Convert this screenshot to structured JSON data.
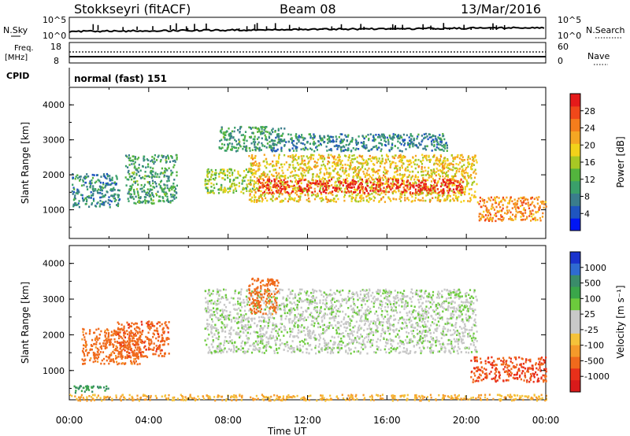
{
  "header": {
    "station": "Stokkseyri (fitACF)",
    "beam": "Beam 08",
    "date": "13/Mar/2016"
  },
  "strips": {
    "nsky_label": "N.Sky",
    "nsky_ticks": [
      "10^5",
      "10^0"
    ],
    "nsearch_label": "N.Search",
    "nsearch_ticks": [
      "10^5",
      "10^0"
    ],
    "freq_label": "Freq.",
    "freq_unit": "[MHz]",
    "freq_ticks": [
      "18",
      "8"
    ],
    "nave_label": "Nave",
    "nave_ticks": [
      "60",
      "0"
    ],
    "cpid_label": "CPID",
    "cpid_value": "normal (fast) 151"
  },
  "chart_data": [
    {
      "type": "heatmap",
      "panel": "power",
      "ylabel": "Slant Range [km]",
      "xlabel": "Time UT",
      "ylim": [
        180,
        4500
      ],
      "xlim": [
        0,
        24
      ],
      "yticks": [
        "1000",
        "2000",
        "3000",
        "4000"
      ],
      "xticks": [
        "00:00",
        "04:00",
        "08:00",
        "12:00",
        "16:00",
        "20:00",
        "00:00"
      ],
      "colorbar": {
        "label": "Power [dB]",
        "ticks": [
          "4",
          "8",
          "12",
          "16",
          "20",
          "24",
          "28"
        ],
        "colors": [
          "#0016f5",
          "#1f55c0",
          "#3a7d8c",
          "#3aa06a",
          "#53b43d",
          "#a7c824",
          "#f2d21a",
          "#f5a623",
          "#f47d1c",
          "#f0481a",
          "#e51a1a"
        ]
      },
      "echo_regions": [
        {
          "t0": 0.1,
          "t1": 2.5,
          "r0": 1100,
          "r1": 2050,
          "power_db": 8
        },
        {
          "t0": 2.8,
          "t1": 5.4,
          "r0": 1200,
          "r1": 2600,
          "power_db": 10
        },
        {
          "t0": 6.8,
          "t1": 9.2,
          "r0": 1500,
          "r1": 2200,
          "power_db": 14
        },
        {
          "t0": 7.5,
          "t1": 10.8,
          "r0": 2700,
          "r1": 3400,
          "power_db": 10
        },
        {
          "t0": 9.0,
          "t1": 20.5,
          "r0": 1250,
          "r1": 2600,
          "power_db": 18
        },
        {
          "t0": 9.5,
          "t1": 19.8,
          "r0": 1500,
          "r1": 1900,
          "power_db": 28
        },
        {
          "t0": 10.0,
          "t1": 19.0,
          "r0": 2700,
          "r1": 3200,
          "power_db": 8
        },
        {
          "t0": 20.5,
          "t1": 24.0,
          "r0": 700,
          "r1": 1400,
          "power_db": 22
        }
      ]
    },
    {
      "type": "heatmap",
      "panel": "velocity",
      "ylabel": "Slant Range [km]",
      "xlabel": "Time UT",
      "ylim": [
        180,
        4500
      ],
      "xlim": [
        0,
        24
      ],
      "yticks": [
        "1000",
        "2000",
        "3000",
        "4000"
      ],
      "xticks": [
        "00:00",
        "04:00",
        "08:00",
        "12:00",
        "16:00",
        "20:00",
        "00:00"
      ],
      "colorbar": {
        "label": "Velocity [m s⁻¹]",
        "ticks": [
          "1000",
          "500",
          "100",
          "25",
          "-25",
          "-100",
          "-500",
          "-1000"
        ],
        "colors": [
          "#1a33cc",
          "#2f6bd1",
          "#3a8c6a",
          "#3aa64a",
          "#6ccb3c",
          "#c8c8c8",
          "#c8c8c8",
          "#f5c23a",
          "#f59a2a",
          "#f06a1c",
          "#e8301a",
          "#d91a1a"
        ]
      },
      "echo_regions": [
        {
          "t0": 0.2,
          "t1": 2.0,
          "r0": 400,
          "r1": 600,
          "velocity_ms": 200
        },
        {
          "t0": 0.6,
          "t1": 3.6,
          "r0": 1200,
          "r1": 2200,
          "velocity_ms": -300
        },
        {
          "t0": 2.4,
          "t1": 5.0,
          "r0": 1400,
          "r1": 2400,
          "velocity_ms": -400
        },
        {
          "t0": 6.8,
          "t1": 20.5,
          "r0": 1500,
          "r1": 3300,
          "velocity_ms": 0
        },
        {
          "t0": 9.0,
          "t1": 10.5,
          "r0": 2600,
          "r1": 3600,
          "velocity_ms": -300
        },
        {
          "t0": 20.2,
          "t1": 24.0,
          "r0": 700,
          "r1": 1400,
          "velocity_ms": -500
        },
        {
          "t0": 0.0,
          "t1": 24.0,
          "r0": 180,
          "r1": 350,
          "velocity_ms": -80
        }
      ]
    }
  ]
}
